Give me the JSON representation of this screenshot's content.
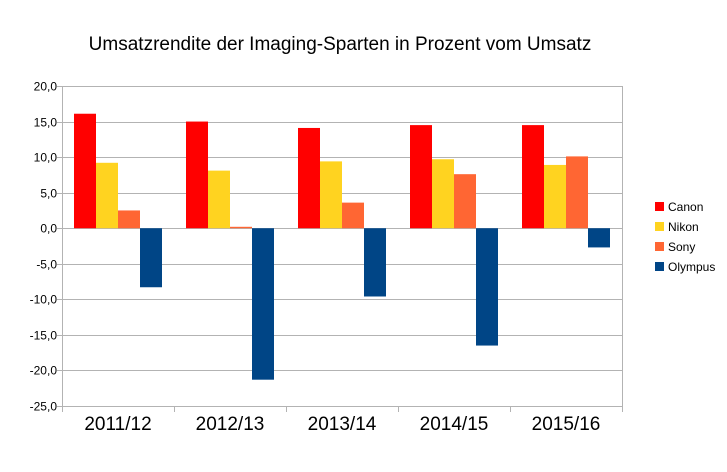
{
  "chart_data": {
    "type": "bar",
    "title": "Umsatzrendite der Imaging-Sparten in Prozent vom Umsatz",
    "xlabel": "",
    "ylabel": "",
    "categories": [
      "2011/12",
      "2012/13",
      "2013/14",
      "2014/15",
      "2015/16"
    ],
    "ylim": [
      -25,
      20
    ],
    "ytick_step": 5,
    "ytick_labels": [
      "20,0",
      "15,0",
      "10,0",
      "5,0",
      "0,0",
      "-5,0",
      "-10,0",
      "-15,0",
      "-20,0",
      "-25,0"
    ],
    "grid": true,
    "legend_position": "right",
    "series": [
      {
        "name": "Canon",
        "color": "#ff0000",
        "values": [
          16.1,
          15.0,
          14.1,
          14.5,
          14.5
        ]
      },
      {
        "name": "Nikon",
        "color": "#ffd320",
        "values": [
          9.2,
          8.1,
          9.4,
          9.7,
          8.9
        ]
      },
      {
        "name": "Sony",
        "color": "#ff6633",
        "values": [
          2.5,
          0.2,
          3.6,
          7.6,
          10.1
        ]
      },
      {
        "name": "Olympus",
        "color": "#004586",
        "values": [
          -8.3,
          -21.3,
          -9.6,
          -16.5,
          -2.7
        ]
      }
    ]
  }
}
